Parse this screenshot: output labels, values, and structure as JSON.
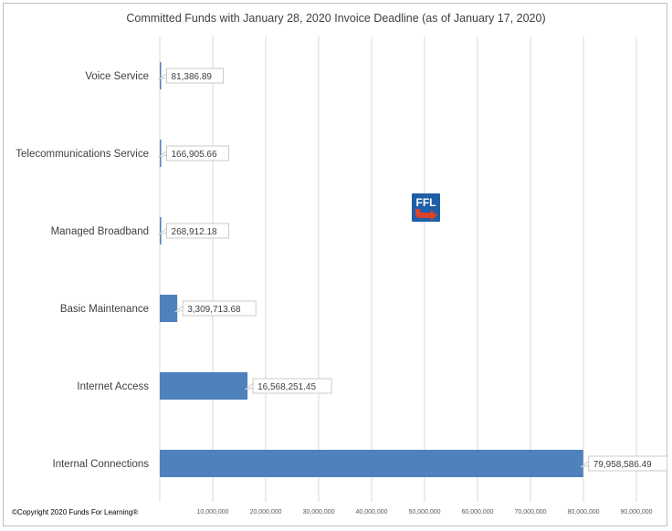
{
  "chart_data": {
    "type": "bar",
    "orientation": "horizontal",
    "title": "Committed Funds with January 28, 2020 Invoice Deadline (as of January 17, 2020)",
    "categories": [
      "Voice Service",
      "Telecommunications Service",
      "Managed Broadband",
      "Basic Maintenance",
      "Internet Access",
      "Internal Connections"
    ],
    "values": [
      81386.89,
      166905.66,
      268912.18,
      3309713.68,
      16568251.45,
      79958586.49
    ],
    "value_labels": [
      "81,386.89",
      "166,905.66",
      "268,912.18",
      "3,309,713.68",
      "16,568,251.45",
      "79,958,586.49"
    ],
    "xlim": [
      0,
      90000000
    ],
    "x_ticks": [
      10000000,
      20000000,
      30000000,
      40000000,
      50000000,
      60000000,
      70000000,
      80000000,
      90000000
    ],
    "x_tick_labels": [
      "10,000,000",
      "20,000,000",
      "30,000,000",
      "40,000,000",
      "50,000,000",
      "60,000,000",
      "70,000,000",
      "80,000,000",
      "90,000,000"
    ],
    "grid": "vertical",
    "bar_color": "#4f81bd",
    "grid_color": "#d9d9d9"
  },
  "footer": {
    "copyright": "©Copyright 2020 Funds For Learning®"
  },
  "logo": {
    "text": "FFL",
    "icon": "ffl-logo-icon",
    "bg_color": "#1f5fa8",
    "arrow_color": "#d9432b"
  }
}
